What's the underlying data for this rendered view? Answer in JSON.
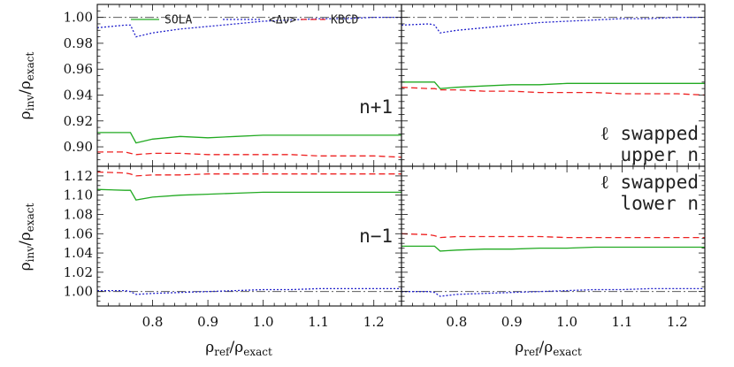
{
  "chart_data": [
    {
      "type": "line",
      "panel": "top-left",
      "label_lines": [
        "n+1"
      ],
      "xlim": [
        0.7,
        1.25
      ],
      "ylim": [
        0.885,
        1.01
      ],
      "x": [
        0.7,
        0.75,
        0.76,
        0.77,
        0.8,
        0.85,
        0.9,
        0.95,
        1.0,
        1.05,
        1.1,
        1.15,
        1.2,
        1.25
      ],
      "series": [
        {
          "name": "SOLA",
          "color": "#22aa22",
          "dash": "",
          "values": [
            0.911,
            0.911,
            0.911,
            0.903,
            0.906,
            0.908,
            0.907,
            0.908,
            0.909,
            0.909,
            0.909,
            0.909,
            0.909,
            0.909
          ]
        },
        {
          "name": "<Δν>",
          "color": "#2222cc",
          "dash": "2,2",
          "values": [
            0.992,
            0.994,
            0.994,
            0.985,
            0.988,
            0.991,
            0.993,
            0.995,
            0.997,
            0.998,
            0.999,
            0.999,
            1.0,
            1.0
          ]
        },
        {
          "name": "KBCD",
          "color": "#ee2222",
          "dash": "7,4",
          "values": [
            0.896,
            0.896,
            0.895,
            0.894,
            0.895,
            0.895,
            0.894,
            0.894,
            0.894,
            0.894,
            0.893,
            0.893,
            0.893,
            0.892
          ]
        }
      ]
    },
    {
      "type": "line",
      "panel": "top-right",
      "label_lines": [
        "ℓ swapped",
        "upper n"
      ],
      "xlim": [
        0.7,
        1.25
      ],
      "ylim": [
        0.885,
        1.01
      ],
      "x": [
        0.7,
        0.75,
        0.76,
        0.77,
        0.8,
        0.85,
        0.9,
        0.95,
        1.0,
        1.05,
        1.1,
        1.15,
        1.2,
        1.25
      ],
      "series": [
        {
          "name": "SOLA",
          "color": "#22aa22",
          "dash": "",
          "values": [
            0.95,
            0.95,
            0.95,
            0.945,
            0.946,
            0.947,
            0.948,
            0.948,
            0.949,
            0.949,
            0.949,
            0.949,
            0.949,
            0.949
          ]
        },
        {
          "name": "<Δν>",
          "color": "#2222cc",
          "dash": "2,2",
          "values": [
            0.994,
            0.995,
            0.994,
            0.988,
            0.99,
            0.992,
            0.994,
            0.996,
            0.997,
            0.998,
            0.999,
            0.999,
            1.0,
            1.0
          ]
        },
        {
          "name": "KBCD",
          "color": "#ee2222",
          "dash": "7,4",
          "values": [
            0.946,
            0.945,
            0.945,
            0.944,
            0.944,
            0.943,
            0.943,
            0.942,
            0.942,
            0.942,
            0.941,
            0.941,
            0.941,
            0.94
          ]
        }
      ]
    },
    {
      "type": "line",
      "panel": "bottom-left",
      "label_lines": [
        "n−1"
      ],
      "xlim": [
        0.7,
        1.25
      ],
      "ylim": [
        0.985,
        1.13
      ],
      "x": [
        0.7,
        0.75,
        0.76,
        0.77,
        0.8,
        0.85,
        0.9,
        0.95,
        1.0,
        1.05,
        1.1,
        1.15,
        1.2,
        1.25
      ],
      "series": [
        {
          "name": "SOLA",
          "color": "#22aa22",
          "dash": "",
          "values": [
            1.106,
            1.105,
            1.105,
            1.095,
            1.098,
            1.1,
            1.101,
            1.102,
            1.103,
            1.103,
            1.103,
            1.103,
            1.103,
            1.103
          ]
        },
        {
          "name": "<Δν>",
          "color": "#2222cc",
          "dash": "2,2",
          "values": [
            1.001,
            1.001,
            1.0,
            0.997,
            0.998,
            0.999,
            1.0,
            1.001,
            1.002,
            1.002,
            1.003,
            1.003,
            1.003,
            1.003
          ]
        },
        {
          "name": "KBCD",
          "color": "#ee2222",
          "dash": "7,4",
          "values": [
            1.124,
            1.123,
            1.122,
            1.12,
            1.121,
            1.121,
            1.122,
            1.122,
            1.122,
            1.122,
            1.122,
            1.122,
            1.122,
            1.122
          ]
        }
      ]
    },
    {
      "type": "line",
      "panel": "bottom-right",
      "label_lines": [
        "ℓ swapped",
        "lower n"
      ],
      "xlim": [
        0.7,
        1.25
      ],
      "ylim": [
        0.985,
        1.13
      ],
      "x": [
        0.7,
        0.75,
        0.76,
        0.77,
        0.8,
        0.85,
        0.9,
        0.95,
        1.0,
        1.05,
        1.1,
        1.15,
        1.2,
        1.25
      ],
      "series": [
        {
          "name": "SOLA",
          "color": "#22aa22",
          "dash": "",
          "values": [
            1.047,
            1.047,
            1.047,
            1.042,
            1.043,
            1.044,
            1.044,
            1.045,
            1.045,
            1.046,
            1.046,
            1.046,
            1.046,
            1.046
          ]
        },
        {
          "name": "<Δν>",
          "color": "#2222cc",
          "dash": "2,2",
          "values": [
            1.0,
            1.0,
            0.999,
            0.995,
            0.997,
            0.998,
            0.999,
            1.0,
            1.001,
            1.002,
            1.002,
            1.003,
            1.003,
            1.003
          ]
        },
        {
          "name": "KBCD",
          "color": "#ee2222",
          "dash": "7,4",
          "values": [
            1.06,
            1.059,
            1.058,
            1.056,
            1.057,
            1.057,
            1.057,
            1.057,
            1.056,
            1.056,
            1.056,
            1.056,
            1.056,
            1.056
          ]
        }
      ]
    }
  ],
  "axes": {
    "x_ticks": [
      "0.8",
      "0.9",
      "1.0",
      "1.1",
      "1.2"
    ],
    "x_tick_values": [
      0.8,
      0.9,
      1.0,
      1.1,
      1.2
    ],
    "y_ticks_top": [
      "0.90",
      "0.92",
      "0.94",
      "0.96",
      "0.98",
      "1.00"
    ],
    "y_tick_values_top": [
      0.9,
      0.92,
      0.94,
      0.96,
      0.98,
      1.0
    ],
    "y_ticks_bottom": [
      "1.00",
      "1.02",
      "1.04",
      "1.06",
      "1.08",
      "1.10",
      "1.12"
    ],
    "y_tick_values_bottom": [
      1.0,
      1.02,
      1.04,
      1.06,
      1.08,
      1.1,
      1.12
    ],
    "y_label_main": "ρ",
    "y_label_sub_num": "inv",
    "y_label_sub_den": "exact",
    "x_label_main": "ρ",
    "x_label_sub_num": "ref",
    "x_label_sub_den": "exact",
    "reference_line_values": [
      1.0
    ]
  },
  "legend": {
    "placement": "top",
    "entries": [
      {
        "label": "SOLA",
        "color": "#22aa22",
        "dash": ""
      },
      {
        "label": "<Δν>",
        "color": "#2222cc",
        "dash": "2,2"
      },
      {
        "label": "KBCD",
        "color": "#ee2222",
        "dash": "7,4"
      }
    ]
  }
}
